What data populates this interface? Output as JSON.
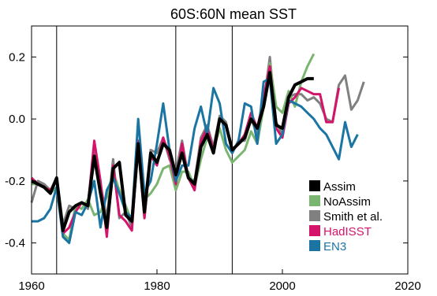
{
  "chart_data": {
    "type": "line",
    "title": "60S:60N mean SST",
    "xlabel": "",
    "ylabel": "",
    "xlim": [
      1960,
      2020
    ],
    "ylim": [
      -0.5,
      0.3
    ],
    "x_ticks": [
      1960,
      1980,
      2000,
      2020
    ],
    "y_ticks": [
      -0.4,
      -0.2,
      0.0,
      0.2
    ],
    "y_tick_labels": [
      "-0.4",
      "-0.2",
      "0.0",
      "0.2"
    ],
    "vertical_lines": [
      1964,
      1983,
      1992
    ],
    "grid": false,
    "legend_position": "bottom-right",
    "series": [
      {
        "name": "Smith et al.",
        "color": "#808080",
        "x": [
          1960,
          1961,
          1962,
          1963,
          1964,
          1965,
          1966,
          1967,
          1968,
          1969,
          1970,
          1971,
          1972,
          1973,
          1974,
          1975,
          1976,
          1977,
          1978,
          1979,
          1980,
          1981,
          1982,
          1983,
          1984,
          1985,
          1986,
          1987,
          1988,
          1989,
          1990,
          1991,
          1992,
          1993,
          1994,
          1995,
          1996,
          1997,
          1998,
          1999,
          2000,
          2001,
          2002,
          2003,
          2004,
          2005,
          2006,
          2007,
          2008,
          2009,
          2010,
          2011,
          2012,
          2013
        ],
        "y": [
          -0.27,
          -0.2,
          -0.21,
          -0.23,
          -0.19,
          -0.34,
          -0.28,
          -0.29,
          -0.27,
          -0.29,
          -0.09,
          -0.21,
          -0.32,
          -0.13,
          -0.32,
          -0.3,
          -0.35,
          -0.09,
          -0.32,
          -0.1,
          -0.11,
          -0.06,
          -0.13,
          -0.17,
          -0.07,
          -0.19,
          -0.2,
          -0.06,
          -0.02,
          -0.09,
          0.01,
          -0.01,
          -0.11,
          -0.07,
          -0.07,
          0.0,
          -0.05,
          0.05,
          0.2,
          -0.01,
          -0.05,
          0.07,
          0.08,
          0.08,
          0.06,
          0.07,
          0.05,
          0.0,
          -0.01,
          0.11,
          0.14,
          0.03,
          0.06,
          0.12
        ]
      },
      {
        "name": "NoAssim",
        "color": "#7ab66f",
        "x": [
          1960,
          1961,
          1962,
          1963,
          1964,
          1965,
          1966,
          1967,
          1968,
          1969,
          1970,
          1971,
          1972,
          1973,
          1974,
          1975,
          1976,
          1977,
          1978,
          1979,
          1980,
          1981,
          1982,
          1983,
          1984,
          1985,
          1986,
          1987,
          1988,
          1989,
          1990,
          1991,
          1992,
          1993,
          1994,
          1995,
          1996,
          1997,
          1998,
          1999,
          2000,
          2001,
          2002,
          2003,
          2004,
          2005
        ],
        "y": [
          -0.21,
          -0.21,
          -0.22,
          -0.24,
          -0.22,
          -0.37,
          -0.39,
          -0.28,
          -0.29,
          -0.26,
          -0.31,
          -0.3,
          -0.25,
          -0.17,
          -0.23,
          -0.28,
          -0.33,
          -0.1,
          -0.26,
          -0.24,
          -0.21,
          -0.16,
          -0.15,
          -0.23,
          -0.17,
          -0.17,
          -0.22,
          -0.13,
          -0.06,
          -0.1,
          -0.03,
          -0.1,
          -0.14,
          -0.12,
          -0.1,
          -0.04,
          -0.08,
          0.04,
          0.18,
          0.04,
          0.02,
          0.09,
          0.04,
          0.12,
          0.17,
          0.21
        ]
      },
      {
        "name": "HadISST",
        "color": "#d6136a",
        "x": [
          1960,
          1961,
          1962,
          1963,
          1964,
          1965,
          1966,
          1967,
          1968,
          1969,
          1970,
          1971,
          1972,
          1973,
          1974,
          1975,
          1976,
          1977,
          1978,
          1979,
          1980,
          1981,
          1982,
          1983,
          1984,
          1985,
          1986,
          1987,
          1988,
          1989,
          1990,
          1991,
          1992,
          1993,
          1994,
          1995,
          1996,
          1997,
          1998,
          1999,
          2000,
          2001,
          2002,
          2003,
          2004,
          2005,
          2006,
          2007,
          2008,
          2009
        ],
        "y": [
          -0.19,
          -0.21,
          -0.22,
          -0.23,
          -0.2,
          -0.37,
          -0.35,
          -0.3,
          -0.27,
          -0.28,
          -0.07,
          -0.2,
          -0.38,
          -0.15,
          -0.31,
          -0.33,
          -0.36,
          -0.07,
          -0.32,
          -0.12,
          -0.15,
          -0.06,
          -0.12,
          -0.21,
          -0.08,
          -0.19,
          -0.23,
          -0.07,
          -0.03,
          -0.1,
          0.0,
          -0.02,
          -0.1,
          -0.08,
          -0.05,
          0.02,
          -0.03,
          0.07,
          0.17,
          -0.03,
          -0.06,
          0.05,
          0.07,
          0.1,
          0.09,
          0.08,
          0.08,
          -0.01,
          -0.01,
          0.1
        ]
      },
      {
        "name": "EN3",
        "color": "#1b75a3",
        "x": [
          1960,
          1961,
          1962,
          1963,
          1964,
          1965,
          1966,
          1967,
          1968,
          1969,
          1970,
          1971,
          1972,
          1973,
          1974,
          1975,
          1976,
          1977,
          1978,
          1979,
          1980,
          1981,
          1982,
          1983,
          1984,
          1985,
          1986,
          1987,
          1988,
          1989,
          1990,
          1991,
          1992,
          1993,
          1994,
          1995,
          1996,
          1997,
          1998,
          1999,
          2000,
          2001,
          2002,
          2003,
          2004,
          2005,
          2006,
          2007,
          2008,
          2009,
          2010,
          2011,
          2012
        ],
        "y": [
          -0.33,
          -0.33,
          -0.32,
          -0.29,
          -0.22,
          -0.38,
          -0.4,
          -0.3,
          -0.31,
          -0.27,
          -0.2,
          -0.35,
          -0.23,
          -0.19,
          -0.24,
          -0.3,
          -0.32,
          0.0,
          -0.24,
          -0.2,
          -0.08,
          0.05,
          -0.1,
          -0.2,
          -0.15,
          -0.15,
          -0.03,
          0.04,
          -0.05,
          0.1,
          0.05,
          -0.08,
          -0.11,
          -0.07,
          0.05,
          0.04,
          -0.08,
          0.12,
          0.13,
          -0.08,
          -0.05,
          0.06,
          0.05,
          0.04,
          0.02,
          0.0,
          -0.03,
          -0.05,
          -0.09,
          -0.13,
          -0.01,
          -0.09,
          -0.05
        ]
      },
      {
        "name": "Assim",
        "color": "#000000",
        "x": [
          1960,
          1961,
          1962,
          1963,
          1964,
          1965,
          1966,
          1967,
          1968,
          1969,
          1970,
          1971,
          1972,
          1973,
          1974,
          1975,
          1976,
          1977,
          1978,
          1979,
          1980,
          1981,
          1982,
          1983,
          1984,
          1985,
          1986,
          1987,
          1988,
          1989,
          1990,
          1991,
          1992,
          1993,
          1994,
          1995,
          1996,
          1997,
          1998,
          1999,
          2000,
          2001,
          2002,
          2003,
          2004,
          2005
        ],
        "y": [
          -0.2,
          -0.21,
          -0.22,
          -0.24,
          -0.19,
          -0.36,
          -0.3,
          -0.28,
          -0.27,
          -0.28,
          -0.12,
          -0.24,
          -0.35,
          -0.16,
          -0.14,
          -0.31,
          -0.33,
          -0.08,
          -0.3,
          -0.11,
          -0.14,
          -0.08,
          -0.1,
          -0.18,
          -0.11,
          -0.19,
          -0.21,
          -0.09,
          -0.05,
          -0.11,
          0.0,
          -0.02,
          -0.1,
          -0.08,
          -0.06,
          0.0,
          -0.03,
          0.04,
          0.15,
          -0.02,
          -0.03,
          0.07,
          0.11,
          0.12,
          0.13,
          0.13
        ]
      }
    ],
    "legend_order": [
      "Assim",
      "NoAssim",
      "Smith et al.",
      "HadISST",
      "EN3"
    ]
  }
}
